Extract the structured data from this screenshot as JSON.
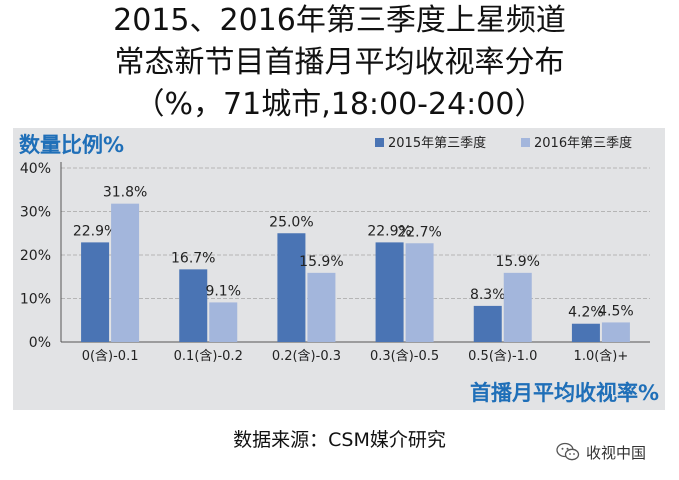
{
  "chart_data": {
    "type": "bar",
    "title_lines": [
      "2015、2016年第三季度上星频道",
      "常态新节目首播月平均收视率分布",
      "（%，71城市,18:00-24:00）"
    ],
    "ylabel": "数量比例%",
    "xlabel": "首播月平均收视率%",
    "categories": [
      "0(含)-0.1",
      "0.1(含)-0.2",
      "0.2(含)-0.3",
      "0.3(含)-0.5",
      "0.5(含)-1.0",
      "1.0(含)+"
    ],
    "series": [
      {
        "name": "2015年第三季度",
        "values": [
          22.9,
          16.7,
          25.0,
          22.9,
          8.3,
          4.2
        ],
        "labels": [
          "22.9%",
          "16.7%",
          "25.0%",
          "22.9%",
          "8.3%",
          "4.2%"
        ],
        "color": "#4a74b4"
      },
      {
        "name": "2016年第三季度",
        "values": [
          31.8,
          9.1,
          15.9,
          22.7,
          15.9,
          4.5
        ],
        "labels": [
          "31.8%",
          "9.1%",
          "15.9%",
          "22.7%",
          "15.9%",
          "4.5%"
        ],
        "color": "#a3b6dc"
      }
    ],
    "ylim": [
      0,
      40
    ],
    "yticks": [
      0,
      10,
      20,
      30,
      40
    ],
    "ytick_labels": [
      "0%",
      "10%",
      "20%",
      "30%",
      "40%"
    ],
    "grid": true,
    "legend_position": "top-right"
  },
  "source": "数据来源：CSM媒介研究",
  "watermark": {
    "text": "收视中国",
    "icon": "wechat-icon"
  },
  "colors": {
    "axis_title": "#1f6fb8",
    "panel": "#e2e3e5"
  }
}
